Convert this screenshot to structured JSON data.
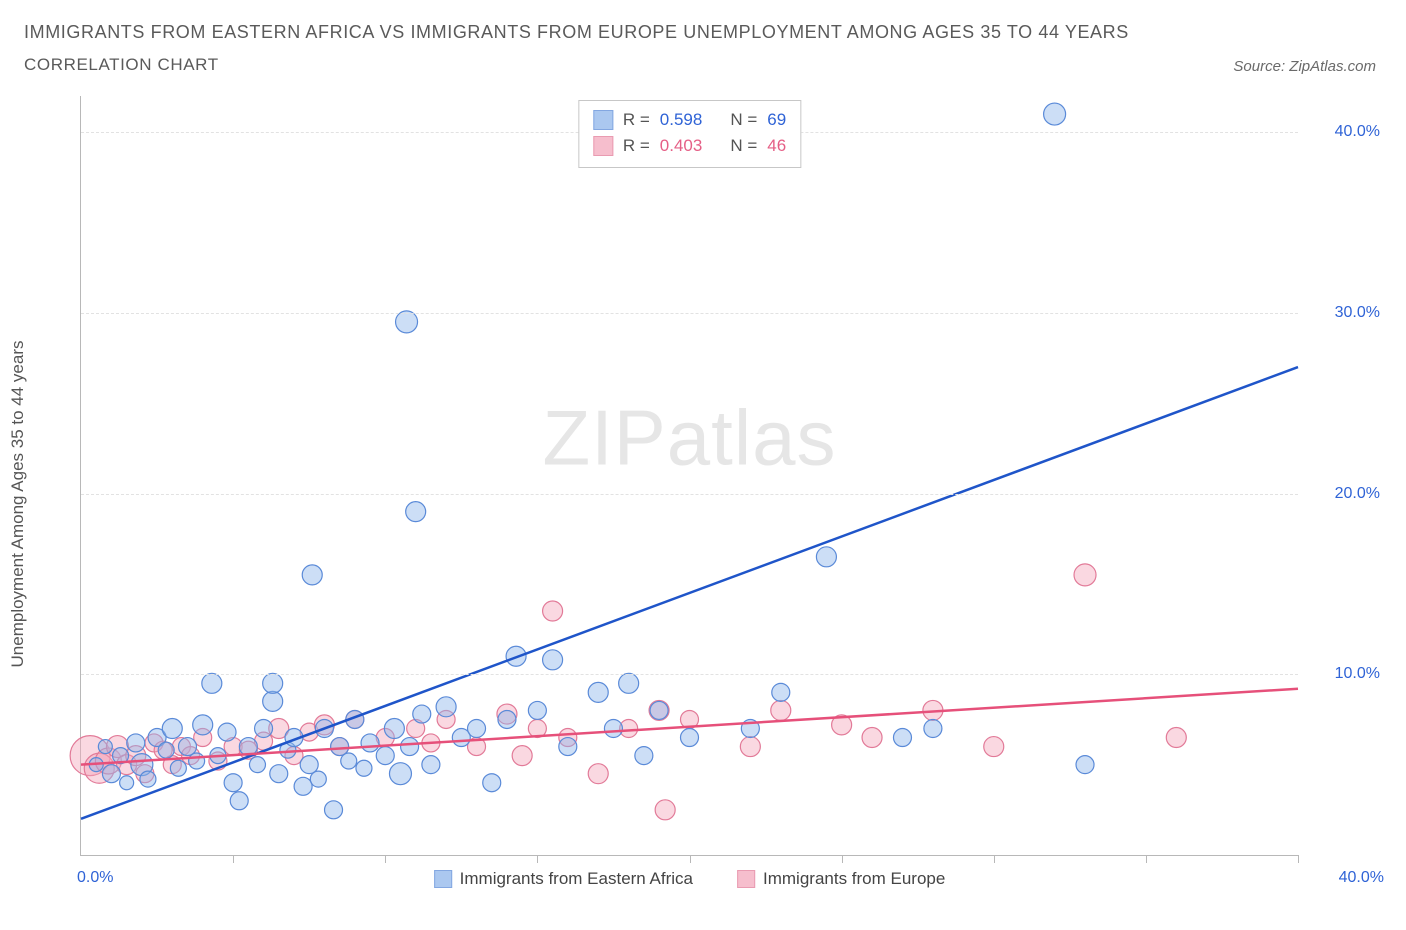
{
  "title_line1": "Immigrants from Eastern Africa vs Immigrants from Europe Unemployment Among Ages 35 to 44 Years",
  "title_line2": "Correlation Chart",
  "source_prefix": "Source: ",
  "source_name": "ZipAtlas.com",
  "y_axis_label": "Unemployment Among Ages 35 to 44 years",
  "watermark_a": "ZIP",
  "watermark_b": "atlas",
  "chart": {
    "type": "scatter",
    "x_min": 0,
    "x_max": 40,
    "y_min": 0,
    "y_max": 42,
    "y_ticks": [
      10,
      20,
      30,
      40
    ],
    "y_tick_labels": [
      "10.0%",
      "20.0%",
      "30.0%",
      "40.0%"
    ],
    "x_ticks": [
      5,
      10,
      15,
      20,
      25,
      30,
      35,
      40
    ],
    "x_origin_label": "0.0%",
    "x_max_label": "40.0%",
    "grid_color": "#e2e2e2",
    "axis_color": "#b8b8b8",
    "background_color": "#ffffff"
  },
  "series": {
    "a": {
      "name": "Immigrants from Eastern Africa",
      "fill": "#8fb6ec",
      "fill_opacity": 0.45,
      "stroke": "#5a8ad8",
      "line_color": "#1f55c9",
      "R_label": "R =",
      "R_value": "0.598",
      "N_label": "N =",
      "N_value": "69",
      "trend": {
        "x1": 0,
        "y1": 2.0,
        "x2": 40,
        "y2": 27.0
      },
      "points": [
        [
          0.5,
          5,
          7
        ],
        [
          0.8,
          6,
          7
        ],
        [
          1,
          4.5,
          9
        ],
        [
          1.3,
          5.5,
          8
        ],
        [
          1.5,
          4,
          7
        ],
        [
          1.8,
          6.2,
          9
        ],
        [
          2,
          5,
          11
        ],
        [
          2.2,
          4.2,
          8
        ],
        [
          2.5,
          6.5,
          9
        ],
        [
          2.8,
          5.8,
          8
        ],
        [
          3,
          7,
          10
        ],
        [
          3.2,
          4.8,
          8
        ],
        [
          3.5,
          6,
          9
        ],
        [
          3.8,
          5.2,
          8
        ],
        [
          4,
          7.2,
          10
        ],
        [
          4.3,
          9.5,
          10
        ],
        [
          4.5,
          5.5,
          8
        ],
        [
          4.8,
          6.8,
          9
        ],
        [
          5,
          4,
          9
        ],
        [
          5.2,
          3,
          9
        ],
        [
          5.5,
          6,
          9
        ],
        [
          5.8,
          5,
          8
        ],
        [
          6,
          7,
          9
        ],
        [
          6.3,
          8.5,
          10
        ],
        [
          6.3,
          9.5,
          10
        ],
        [
          6.5,
          4.5,
          9
        ],
        [
          6.8,
          5.8,
          8
        ],
        [
          7,
          6.5,
          9
        ],
        [
          7.3,
          3.8,
          9
        ],
        [
          7.5,
          5,
          9
        ],
        [
          7.6,
          15.5,
          10
        ],
        [
          7.8,
          4.2,
          8
        ],
        [
          8,
          7,
          9
        ],
        [
          8.3,
          2.5,
          9
        ],
        [
          8.5,
          6,
          9
        ],
        [
          8.8,
          5.2,
          8
        ],
        [
          9,
          7.5,
          9
        ],
        [
          9.3,
          4.8,
          8
        ],
        [
          9.5,
          6.2,
          9
        ],
        [
          10,
          5.5,
          9
        ],
        [
          10.3,
          7,
          10
        ],
        [
          10.5,
          4.5,
          11
        ],
        [
          10.7,
          29.5,
          11
        ],
        [
          10.8,
          6,
          9
        ],
        [
          11,
          19,
          10
        ],
        [
          11.2,
          7.8,
          9
        ],
        [
          11.5,
          5,
          9
        ],
        [
          12,
          8.2,
          10
        ],
        [
          12.5,
          6.5,
          9
        ],
        [
          13,
          7,
          9
        ],
        [
          13.5,
          4,
          9
        ],
        [
          14,
          7.5,
          9
        ],
        [
          14.3,
          11,
          10
        ],
        [
          15,
          8,
          9
        ],
        [
          15.5,
          10.8,
          10
        ],
        [
          16,
          6,
          9
        ],
        [
          17,
          9,
          10
        ],
        [
          17.5,
          7,
          9
        ],
        [
          18,
          9.5,
          10
        ],
        [
          18.5,
          5.5,
          9
        ],
        [
          19,
          8,
          9
        ],
        [
          20,
          6.5,
          9
        ],
        [
          22,
          7,
          9
        ],
        [
          23,
          9,
          9
        ],
        [
          24.5,
          16.5,
          10
        ],
        [
          27,
          6.5,
          9
        ],
        [
          28,
          7,
          9
        ],
        [
          32,
          41,
          11
        ],
        [
          33,
          5,
          9
        ]
      ]
    },
    "b": {
      "name": "Immigrants from Europe",
      "fill": "#f4a9bd",
      "fill_opacity": 0.45,
      "stroke": "#e27a98",
      "line_color": "#e6507a",
      "R_label": "R =",
      "R_value": "0.403",
      "N_label": "N =",
      "N_value": "46",
      "trend": {
        "x1": 0,
        "y1": 5.0,
        "x2": 40,
        "y2": 9.2
      },
      "points": [
        [
          0.3,
          5.5,
          20
        ],
        [
          0.6,
          4.8,
          15
        ],
        [
          0.9,
          5.2,
          13
        ],
        [
          1.2,
          6,
          11
        ],
        [
          1.5,
          5,
          10
        ],
        [
          1.8,
          5.5,
          10
        ],
        [
          2.1,
          4.5,
          9
        ],
        [
          2.4,
          6.2,
          9
        ],
        [
          2.7,
          5.8,
          9
        ],
        [
          3,
          5,
          9
        ],
        [
          3.3,
          6,
          9
        ],
        [
          3.6,
          5.5,
          9
        ],
        [
          4,
          6.5,
          9
        ],
        [
          4.5,
          5.2,
          9
        ],
        [
          5,
          6,
          9
        ],
        [
          5.5,
          5.8,
          9
        ],
        [
          6,
          6.3,
          9
        ],
        [
          6.5,
          7,
          10
        ],
        [
          7,
          5.5,
          9
        ],
        [
          7.5,
          6.8,
          9
        ],
        [
          8,
          7.2,
          10
        ],
        [
          8.5,
          6,
          9
        ],
        [
          9,
          7.5,
          9
        ],
        [
          10,
          6.5,
          9
        ],
        [
          11,
          7,
          9
        ],
        [
          11.5,
          6.2,
          9
        ],
        [
          12,
          7.5,
          9
        ],
        [
          13,
          6,
          9
        ],
        [
          14,
          7.8,
          10
        ],
        [
          14.5,
          5.5,
          10
        ],
        [
          15,
          7,
          9
        ],
        [
          15.5,
          13.5,
          10
        ],
        [
          16,
          6.5,
          9
        ],
        [
          17,
          4.5,
          10
        ],
        [
          18,
          7,
          9
        ],
        [
          19,
          8,
          10
        ],
        [
          19.2,
          2.5,
          10
        ],
        [
          20,
          7.5,
          9
        ],
        [
          22,
          6,
          10
        ],
        [
          23,
          8,
          10
        ],
        [
          25,
          7.2,
          10
        ],
        [
          26,
          6.5,
          10
        ],
        [
          28,
          8,
          10
        ],
        [
          30,
          6,
          10
        ],
        [
          33,
          15.5,
          11
        ],
        [
          36,
          6.5,
          10
        ]
      ]
    }
  }
}
